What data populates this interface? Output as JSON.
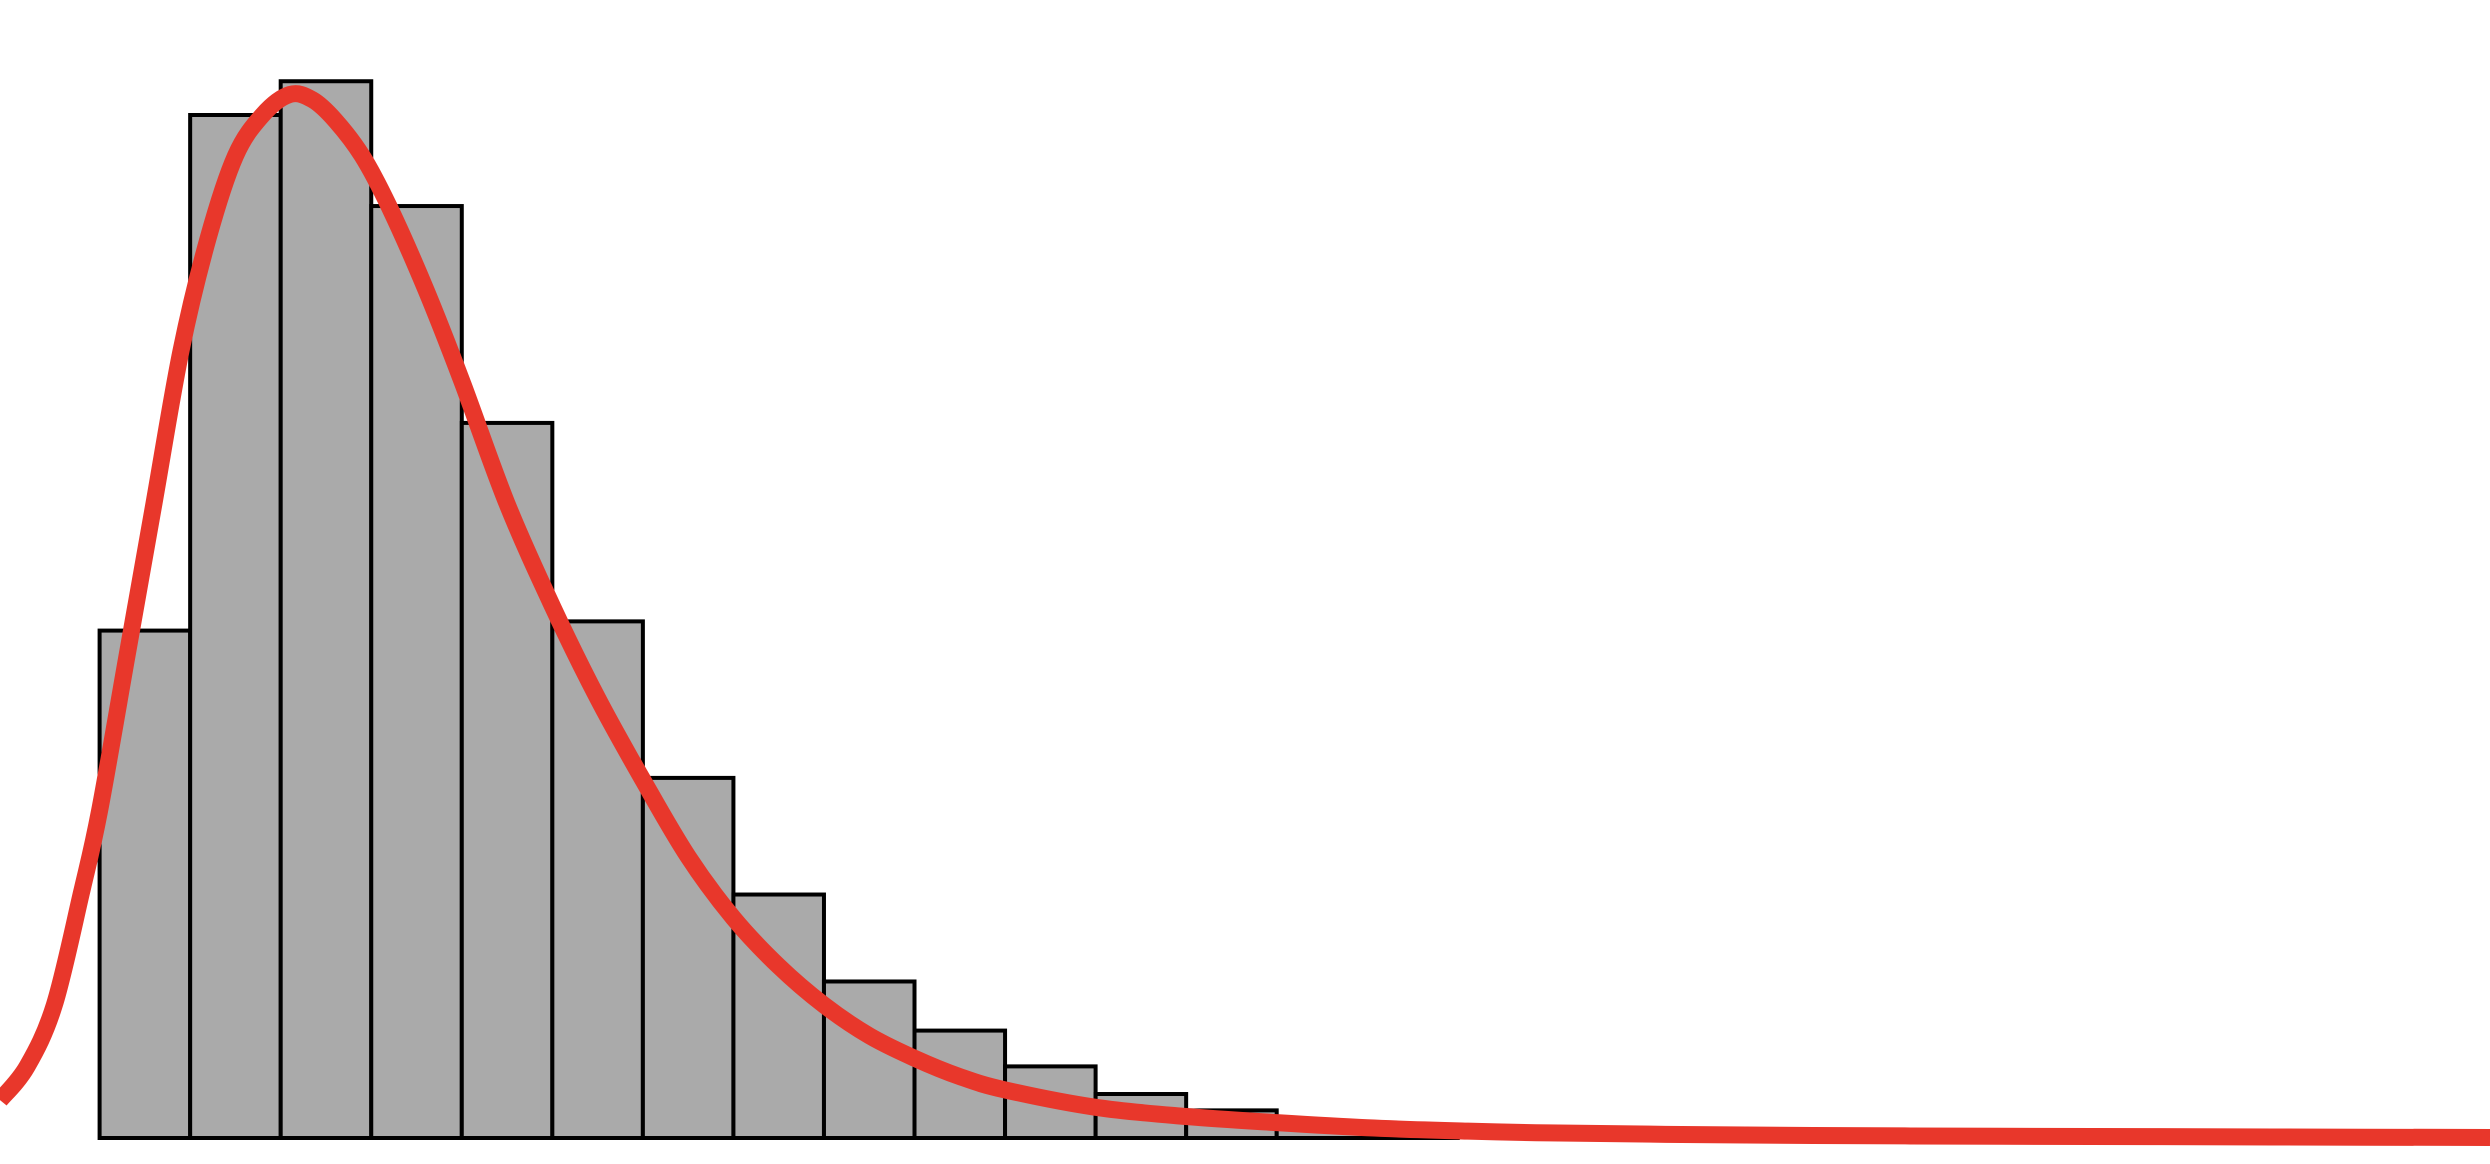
{
  "chart_data": {
    "type": "bar",
    "title": "",
    "xlabel": "",
    "ylabel": "",
    "grid": false,
    "legend": "none",
    "bins": [
      [
        0,
        1
      ],
      [
        1,
        2
      ],
      [
        2,
        3
      ],
      [
        3,
        4
      ],
      [
        4,
        5
      ],
      [
        5,
        6
      ],
      [
        6,
        7
      ],
      [
        7,
        8
      ],
      [
        8,
        9
      ],
      [
        9,
        10
      ],
      [
        10,
        11
      ],
      [
        11,
        12
      ],
      [
        12,
        13
      ],
      [
        13,
        14
      ],
      [
        14,
        15
      ]
    ],
    "values": [
      0.496,
      1.0,
      1.033,
      0.911,
      0.699,
      0.505,
      0.352,
      0.238,
      0.153,
      0.105,
      0.07,
      0.043,
      0.027,
      0.016,
      0.008
    ],
    "xlim": [
      -1.1,
      26.4
    ],
    "ylim": [
      0,
      1.05
    ],
    "curve": {
      "type": "right-skewed density fit",
      "x": [
        -1.1,
        -0.8,
        -0.5,
        -0.2,
        0.0,
        0.3,
        0.6,
        0.9,
        1.2,
        1.5,
        1.8,
        2.1,
        2.35,
        2.6,
        2.9,
        3.2,
        3.6,
        4.0,
        4.5,
        5.0,
        5.5,
        6.0,
        6.5,
        7.0,
        7.5,
        8.0,
        8.5,
        9.0,
        9.5,
        10.0,
        11.0,
        12.0,
        13.0,
        14.0,
        15.0,
        16.0,
        18.0,
        20.0,
        22.0,
        24.0,
        26.4
      ],
      "y": [
        0.037,
        0.07,
        0.13,
        0.24,
        0.32,
        0.47,
        0.62,
        0.77,
        0.88,
        0.96,
        1.0,
        1.02,
        1.015,
        0.995,
        0.96,
        0.91,
        0.83,
        0.74,
        0.62,
        0.52,
        0.43,
        0.35,
        0.275,
        0.215,
        0.168,
        0.13,
        0.1,
        0.078,
        0.06,
        0.047,
        0.03,
        0.021,
        0.015,
        0.01,
        0.007,
        0.005,
        0.003,
        0.002,
        0.0015,
        0.001,
        0.0005
      ]
    },
    "colors": {
      "bar_fill": "#aaaaaa",
      "bar_edge": "#000000",
      "curve": "#e8372b",
      "background": "#ffffff"
    }
  }
}
